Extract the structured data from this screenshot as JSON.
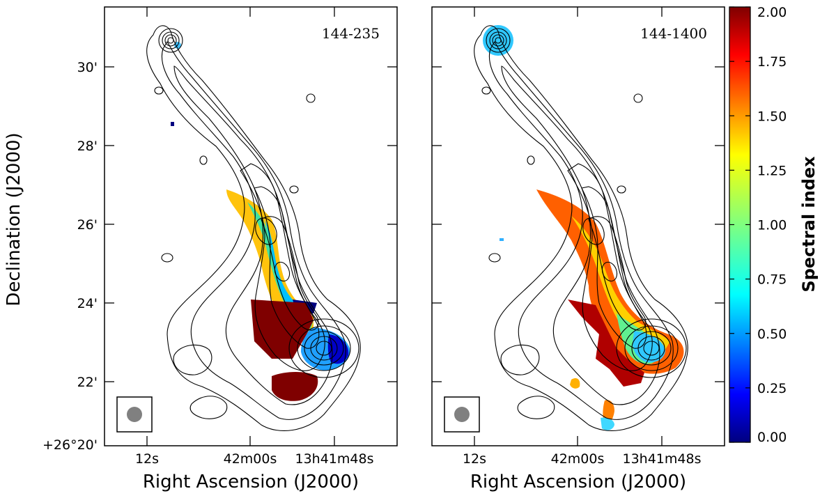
{
  "figure": {
    "y_axis_label": "Declination (J2000)",
    "x_axis_label": "Right Ascension (J2000)",
    "dec_ticks": [
      "30'",
      "28'",
      "26'",
      "24'",
      "22'",
      "+26°20'"
    ],
    "ra_ticks": [
      "12s",
      "42m00s",
      "13h41m48s"
    ]
  },
  "panels": [
    {
      "label": "144-235"
    },
    {
      "label": "144-1400"
    }
  ],
  "colorbar": {
    "label": "Spectral index",
    "ticks": [
      "2.00",
      "1.75",
      "1.50",
      "1.25",
      "1.00",
      "0.75",
      "0.50",
      "0.25",
      "0.00"
    ],
    "range": [
      0.0,
      2.0
    ],
    "colormap": "jet"
  },
  "colors": {
    "contour": "#000000",
    "beam": "#808080",
    "frame": "#000000"
  }
}
